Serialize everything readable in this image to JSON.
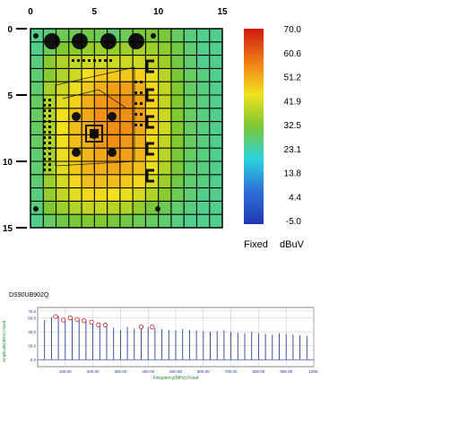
{
  "chart_data": [
    {
      "type": "heatmap",
      "x_ticks": [
        "0",
        "5",
        "10",
        "15"
      ],
      "y_ticks": [
        "0",
        "5",
        "10",
        "15"
      ],
      "xlim": [
        0,
        15
      ],
      "ylim": [
        0,
        15
      ],
      "grid": true,
      "colorbar": {
        "labels": [
          "70.0",
          "60.6",
          "51.2",
          "41.9",
          "32.5",
          "23.1",
          "13.8",
          "4.4",
          "-5.0"
        ],
        "min": -5.0,
        "max": 70.0,
        "colors": [
          "#cc1a10",
          "#f07a14",
          "#f2e01e",
          "#7cc832",
          "#2bd3df",
          "#2e6fd7",
          "#2038b4"
        ]
      },
      "footer_left": "Fixed",
      "footer_right": "dBuV",
      "grid_values": [
        [
          26,
          28,
          30,
          30,
          31,
          30,
          28,
          30,
          32,
          32,
          32,
          29,
          27,
          26,
          26
        ],
        [
          26,
          30,
          33,
          34,
          35,
          36,
          35,
          36,
          37,
          36,
          34,
          31,
          28,
          26,
          26
        ],
        [
          27,
          34,
          38,
          40,
          41,
          41,
          41,
          41,
          41,
          40,
          36,
          31,
          28,
          26,
          26
        ],
        [
          28,
          34,
          38,
          41,
          45,
          48,
          48,
          48,
          47,
          44,
          39,
          32,
          29,
          27,
          26
        ],
        [
          28,
          37,
          41,
          44,
          48,
          51,
          53,
          53,
          51,
          46,
          40,
          33,
          29,
          27,
          26
        ],
        [
          29,
          38,
          43,
          47,
          51,
          54,
          55,
          55,
          52,
          47,
          40,
          33,
          29,
          27,
          26
        ],
        [
          29,
          39,
          45,
          49,
          52,
          55,
          56,
          55,
          53,
          47,
          41,
          33,
          29,
          27,
          26
        ],
        [
          29,
          38,
          45,
          49,
          51,
          54,
          55,
          55,
          52,
          47,
          41,
          33,
          29,
          27,
          26
        ],
        [
          29,
          38,
          45,
          49,
          51,
          54,
          55,
          54,
          51,
          46,
          40,
          33,
          29,
          27,
          26
        ],
        [
          28,
          37,
          44,
          48,
          50,
          52,
          54,
          53,
          50,
          46,
          39,
          32,
          29,
          27,
          26
        ],
        [
          28,
          37,
          43,
          48,
          50,
          51,
          52,
          51,
          49,
          44,
          38,
          32,
          28,
          27,
          26
        ],
        [
          28,
          36,
          42,
          46,
          49,
          49,
          49,
          48,
          46,
          42,
          36,
          31,
          28,
          27,
          26
        ],
        [
          27,
          35,
          40,
          43,
          46,
          46,
          45,
          44,
          42,
          38,
          34,
          30,
          28,
          26,
          26
        ],
        [
          27,
          33,
          36,
          38,
          40,
          40,
          39,
          38,
          35,
          32,
          30,
          28,
          27,
          26,
          26
        ],
        [
          26,
          29,
          31,
          32,
          33,
          33,
          32,
          31,
          30,
          29,
          28,
          27,
          26,
          26,
          26
        ]
      ]
    },
    {
      "type": "line",
      "title": "DS90UB902Q",
      "ylabel": "Amplitude(dBuV) Fixed",
      "xlabel": "Frequency(MHz) Fixed",
      "x_ticks": [
        "100.00",
        "200.00",
        "300.00",
        "400.00",
        "500.00",
        "600.00",
        "700.00",
        "800.00",
        "900.00",
        "1000."
      ],
      "y_ticks": [
        "70.0",
        "60.0",
        "40.0",
        "20.0",
        "0.0"
      ],
      "xlim": [
        0,
        1000
      ],
      "ylim": [
        -10,
        75
      ],
      "grid": true,
      "baseline": 0,
      "spikes": [
        {
          "x": 25,
          "y": 57
        },
        {
          "x": 50,
          "y": 61
        },
        {
          "x": 75,
          "y": 63
        },
        {
          "x": 100,
          "y": 58
        },
        {
          "x": 125,
          "y": 60
        },
        {
          "x": 150,
          "y": 59
        },
        {
          "x": 175,
          "y": 57
        },
        {
          "x": 200,
          "y": 55
        },
        {
          "x": 225,
          "y": 53
        },
        {
          "x": 250,
          "y": 49
        },
        {
          "x": 275,
          "y": 46
        },
        {
          "x": 300,
          "y": 43
        },
        {
          "x": 325,
          "y": 47
        },
        {
          "x": 350,
          "y": 45
        },
        {
          "x": 375,
          "y": 48
        },
        {
          "x": 400,
          "y": 47
        },
        {
          "x": 425,
          "y": 45
        },
        {
          "x": 450,
          "y": 44
        },
        {
          "x": 475,
          "y": 43
        },
        {
          "x": 500,
          "y": 42
        },
        {
          "x": 525,
          "y": 44
        },
        {
          "x": 550,
          "y": 43
        },
        {
          "x": 575,
          "y": 42
        },
        {
          "x": 600,
          "y": 41
        },
        {
          "x": 625,
          "y": 40
        },
        {
          "x": 650,
          "y": 41
        },
        {
          "x": 675,
          "y": 42
        },
        {
          "x": 700,
          "y": 40
        },
        {
          "x": 725,
          "y": 39
        },
        {
          "x": 750,
          "y": 38
        },
        {
          "x": 775,
          "y": 40
        },
        {
          "x": 800,
          "y": 38
        },
        {
          "x": 825,
          "y": 37
        },
        {
          "x": 850,
          "y": 36
        },
        {
          "x": 875,
          "y": 38
        },
        {
          "x": 900,
          "y": 37
        },
        {
          "x": 925,
          "y": 36
        },
        {
          "x": 950,
          "y": 35
        },
        {
          "x": 975,
          "y": 34
        }
      ],
      "markers": [
        {
          "x": 65,
          "y": 62
        },
        {
          "x": 93,
          "y": 57
        },
        {
          "x": 118,
          "y": 60
        },
        {
          "x": 143,
          "y": 58
        },
        {
          "x": 168,
          "y": 56
        },
        {
          "x": 195,
          "y": 54
        },
        {
          "x": 220,
          "y": 50
        },
        {
          "x": 245,
          "y": 50
        },
        {
          "x": 375,
          "y": 47
        },
        {
          "x": 415,
          "y": 47
        }
      ]
    }
  ]
}
